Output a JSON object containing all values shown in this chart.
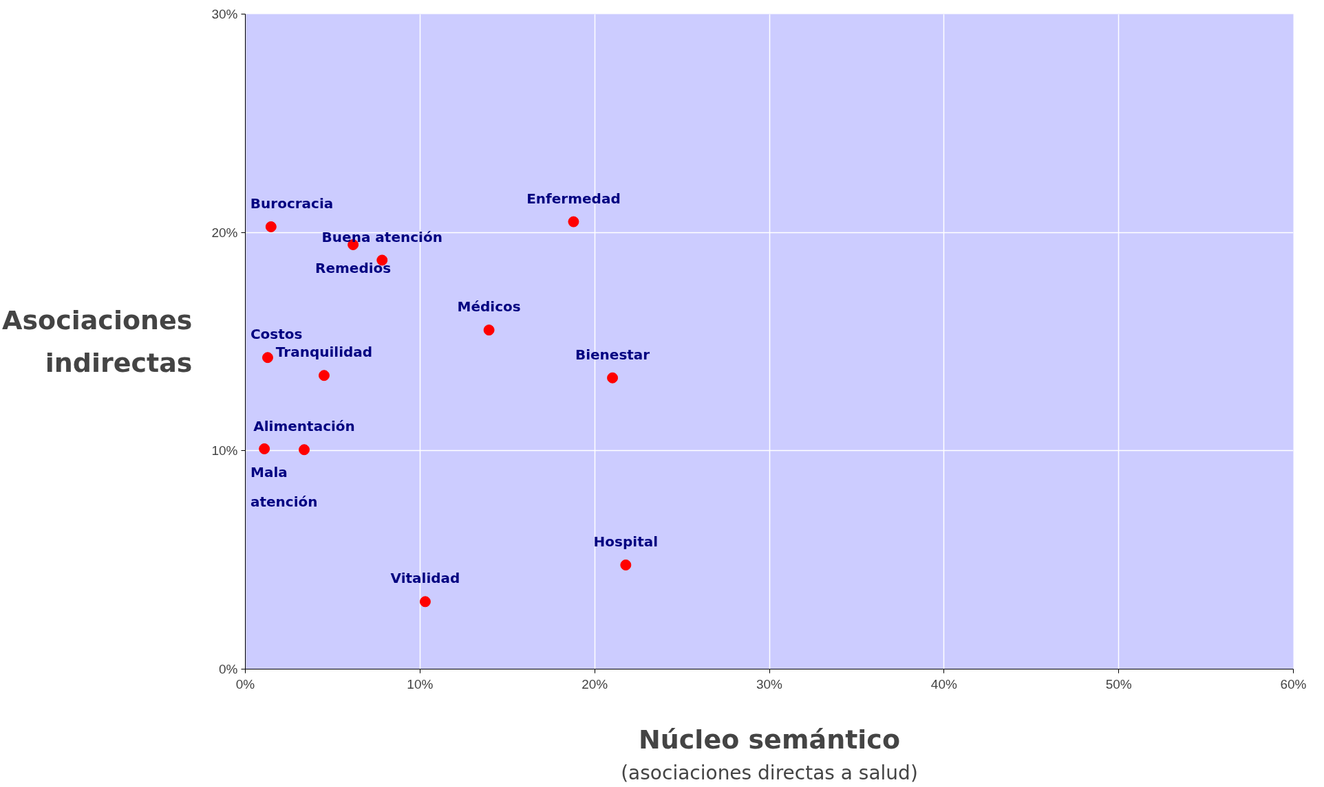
{
  "chart_data": {
    "type": "scatter",
    "xlabel": "Núcleo semántico",
    "ylabel": "Asociaciones\nindirectas",
    "x": [
      1.47,
      6.17,
      7.83,
      18.79,
      13.95,
      1.28,
      4.51,
      21.02,
      1.09,
      3.37,
      21.78,
      10.3
    ],
    "series": [
      {
        "color": "#ff0000",
        "values": [
          20.26,
          19.44,
          18.73,
          20.49,
          15.53,
          14.27,
          13.45,
          13.34,
          10.09,
          10.05,
          4.77,
          3.09
        ]
      }
    ],
    "xlim": [
      0,
      60
    ],
    "ylim": [
      0,
      30
    ],
    "xticks": [
      {
        "value": 0,
        "label": "0%"
      },
      {
        "value": 10,
        "label": "10%"
      },
      {
        "value": 20,
        "label": "20%"
      },
      {
        "value": 30,
        "label": "30%"
      },
      {
        "value": 40,
        "label": "40%"
      },
      {
        "value": 50,
        "label": "50%"
      },
      {
        "value": 60,
        "label": "60%"
      }
    ],
    "yticks": [
      {
        "value": 0,
        "label": "0%"
      },
      {
        "value": 10,
        "label": "10%"
      },
      {
        "value": 20,
        "label": "20%"
      },
      {
        "value": 30,
        "label": "30%"
      }
    ],
    "grid": true,
    "marker": "circle",
    "annotations": [
      {
        "text": "Burocracia",
        "x": 1.47,
        "y": 20.26
      },
      {
        "text": "Remedios",
        "x": 6.17,
        "y": 19.44
      },
      {
        "text": "Buena atención",
        "x": 7.83,
        "y": 18.73
      },
      {
        "text": "Enfermedad",
        "x": 18.79,
        "y": 20.49
      },
      {
        "text": "Médicos",
        "x": 13.95,
        "y": 15.53
      },
      {
        "text": "Costos",
        "x": 1.28,
        "y": 14.27
      },
      {
        "text": "Tranquilidad",
        "x": 4.51,
        "y": 13.45
      },
      {
        "text": "Bienestar",
        "x": 21.02,
        "y": 13.34
      },
      {
        "text": "Mala\natención",
        "x": 1.09,
        "y": 10.09
      },
      {
        "text": "Alimentación",
        "x": 3.37,
        "y": 10.05
      },
      {
        "text": "Hospital",
        "x": 21.78,
        "y": 4.77
      },
      {
        "text": "Vitalidad",
        "x": 10.3,
        "y": 3.09
      },
      "(asociaciones directas a salud)"
    ]
  }
}
